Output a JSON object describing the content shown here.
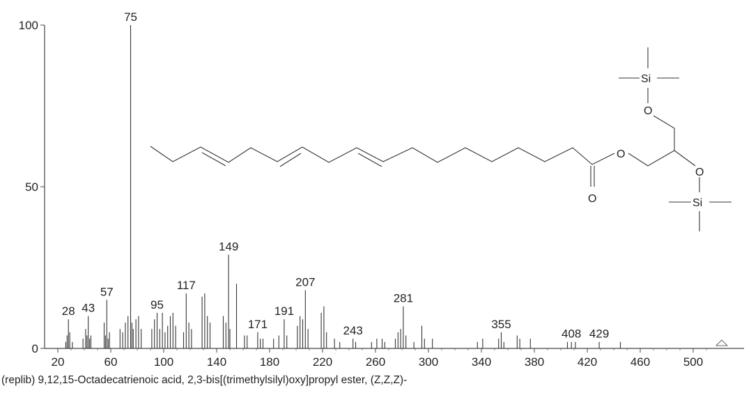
{
  "chart_data": {
    "type": "bar",
    "title": "",
    "xlabel": "",
    "ylabel": "",
    "xlim": [
      20,
      510
    ],
    "ylim": [
      0,
      100
    ],
    "x_ticks": [
      20,
      60,
      100,
      140,
      180,
      220,
      260,
      300,
      340,
      380,
      420,
      460,
      500
    ],
    "y_ticks": [
      0,
      50,
      100
    ],
    "caption": "(replib) 9,12,15-Octadecatrienoic acid, 2,3-bis[(trimethylsilyl)oxy]propyl ester, (Z,Z,Z)-",
    "peaks": [
      {
        "mz": 26,
        "intensity": 2
      },
      {
        "mz": 27,
        "intensity": 4
      },
      {
        "mz": 28,
        "intensity": 9,
        "label": "28"
      },
      {
        "mz": 29,
        "intensity": 5
      },
      {
        "mz": 31,
        "intensity": 2
      },
      {
        "mz": 39,
        "intensity": 3
      },
      {
        "mz": 41,
        "intensity": 6
      },
      {
        "mz": 42,
        "intensity": 4
      },
      {
        "mz": 43,
        "intensity": 10,
        "label": "43"
      },
      {
        "mz": 44,
        "intensity": 3
      },
      {
        "mz": 45,
        "intensity": 4
      },
      {
        "mz": 55,
        "intensity": 8
      },
      {
        "mz": 56,
        "intensity": 4
      },
      {
        "mz": 57,
        "intensity": 15,
        "label": "57"
      },
      {
        "mz": 58,
        "intensity": 3
      },
      {
        "mz": 59,
        "intensity": 5
      },
      {
        "mz": 67,
        "intensity": 6
      },
      {
        "mz": 69,
        "intensity": 5
      },
      {
        "mz": 71,
        "intensity": 8
      },
      {
        "mz": 73,
        "intensity": 10
      },
      {
        "mz": 75,
        "intensity": 100,
        "label": "75"
      },
      {
        "mz": 76,
        "intensity": 8
      },
      {
        "mz": 77,
        "intensity": 6
      },
      {
        "mz": 79,
        "intensity": 9
      },
      {
        "mz": 81,
        "intensity": 10
      },
      {
        "mz": 83,
        "intensity": 6
      },
      {
        "mz": 91,
        "intensity": 6
      },
      {
        "mz": 93,
        "intensity": 9
      },
      {
        "mz": 95,
        "intensity": 11,
        "label": "95"
      },
      {
        "mz": 97,
        "intensity": 6
      },
      {
        "mz": 99,
        "intensity": 11
      },
      {
        "mz": 101,
        "intensity": 5
      },
      {
        "mz": 103,
        "intensity": 7
      },
      {
        "mz": 105,
        "intensity": 10
      },
      {
        "mz": 107,
        "intensity": 11
      },
      {
        "mz": 109,
        "intensity": 7
      },
      {
        "mz": 115,
        "intensity": 5
      },
      {
        "mz": 117,
        "intensity": 17,
        "label": "117"
      },
      {
        "mz": 119,
        "intensity": 8
      },
      {
        "mz": 121,
        "intensity": 6
      },
      {
        "mz": 129,
        "intensity": 16
      },
      {
        "mz": 131,
        "intensity": 17
      },
      {
        "mz": 133,
        "intensity": 10
      },
      {
        "mz": 135,
        "intensity": 8
      },
      {
        "mz": 145,
        "intensity": 10
      },
      {
        "mz": 147,
        "intensity": 8
      },
      {
        "mz": 149,
        "intensity": 29,
        "label": "149"
      },
      {
        "mz": 150,
        "intensity": 6
      },
      {
        "mz": 155,
        "intensity": 20
      },
      {
        "mz": 161,
        "intensity": 4
      },
      {
        "mz": 163,
        "intensity": 4
      },
      {
        "mz": 171,
        "intensity": 5,
        "label": "171"
      },
      {
        "mz": 173,
        "intensity": 3
      },
      {
        "mz": 175,
        "intensity": 3
      },
      {
        "mz": 183,
        "intensity": 3
      },
      {
        "mz": 187,
        "intensity": 4
      },
      {
        "mz": 191,
        "intensity": 9,
        "label": "191"
      },
      {
        "mz": 193,
        "intensity": 4
      },
      {
        "mz": 201,
        "intensity": 7
      },
      {
        "mz": 203,
        "intensity": 10
      },
      {
        "mz": 205,
        "intensity": 9
      },
      {
        "mz": 207,
        "intensity": 18,
        "label": "207"
      },
      {
        "mz": 209,
        "intensity": 6
      },
      {
        "mz": 219,
        "intensity": 11
      },
      {
        "mz": 221,
        "intensity": 13
      },
      {
        "mz": 223,
        "intensity": 5
      },
      {
        "mz": 229,
        "intensity": 3
      },
      {
        "mz": 233,
        "intensity": 2
      },
      {
        "mz": 243,
        "intensity": 3,
        "label": "243"
      },
      {
        "mz": 245,
        "intensity": 2
      },
      {
        "mz": 257,
        "intensity": 2
      },
      {
        "mz": 261,
        "intensity": 3
      },
      {
        "mz": 265,
        "intensity": 3
      },
      {
        "mz": 267,
        "intensity": 2
      },
      {
        "mz": 275,
        "intensity": 3
      },
      {
        "mz": 277,
        "intensity": 5
      },
      {
        "mz": 279,
        "intensity": 6
      },
      {
        "mz": 281,
        "intensity": 13,
        "label": "281"
      },
      {
        "mz": 283,
        "intensity": 4
      },
      {
        "mz": 289,
        "intensity": 2
      },
      {
        "mz": 295,
        "intensity": 7
      },
      {
        "mz": 297,
        "intensity": 3
      },
      {
        "mz": 303,
        "intensity": 3
      },
      {
        "mz": 337,
        "intensity": 2
      },
      {
        "mz": 341,
        "intensity": 3
      },
      {
        "mz": 353,
        "intensity": 3
      },
      {
        "mz": 355,
        "intensity": 5,
        "label": "355"
      },
      {
        "mz": 357,
        "intensity": 2
      },
      {
        "mz": 367,
        "intensity": 4
      },
      {
        "mz": 369,
        "intensity": 3
      },
      {
        "mz": 377,
        "intensity": 3
      },
      {
        "mz": 405,
        "intensity": 2
      },
      {
        "mz": 408,
        "intensity": 2,
        "label": "408"
      },
      {
        "mz": 411,
        "intensity": 2
      },
      {
        "mz": 429,
        "intensity": 2,
        "label": "429"
      },
      {
        "mz": 445,
        "intensity": 2
      }
    ]
  },
  "structure": {
    "atoms": {
      "si_top": "Si",
      "o_top": "O",
      "o_ester": "O",
      "o_carbonyl": "O",
      "o_mid": "O",
      "si_bottom": "Si"
    }
  }
}
